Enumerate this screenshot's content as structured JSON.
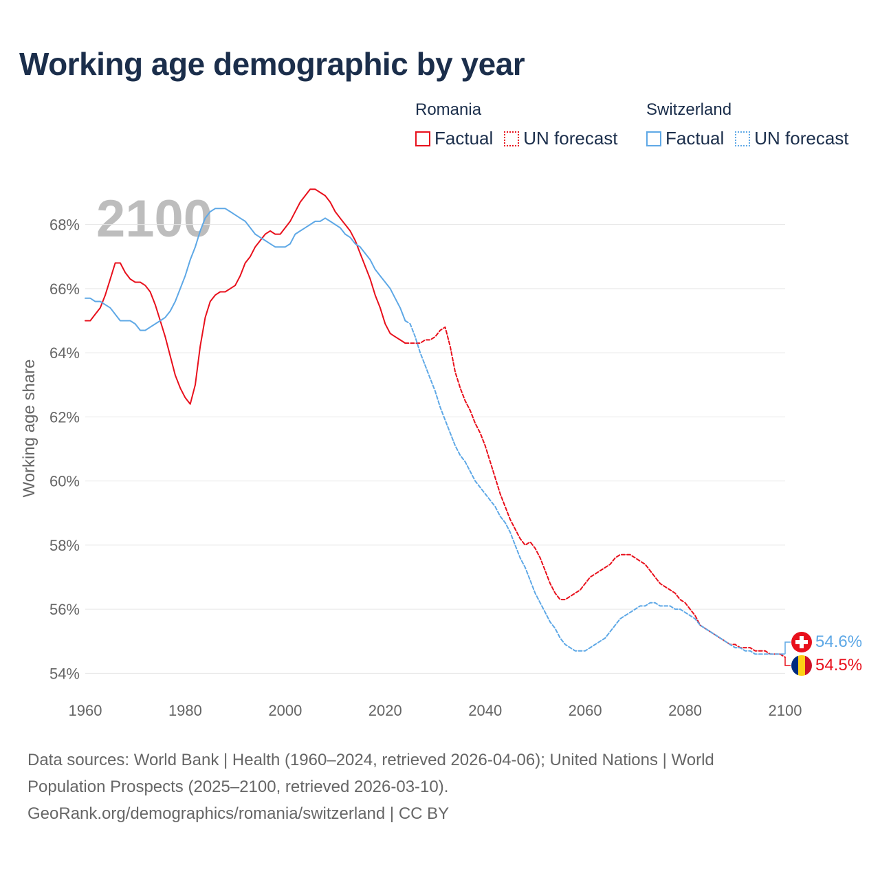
{
  "title": "Working age demographic by year",
  "year_label": "2100",
  "legend": {
    "groups": [
      {
        "country": "Romania",
        "factual_label": "Factual",
        "forecast_label": "UN forecast",
        "color": "#e8101c"
      },
      {
        "country": "Switzerland",
        "factual_label": "Factual",
        "forecast_label": "UN forecast",
        "color": "#5ea8e6"
      }
    ]
  },
  "end_labels": {
    "switzerland": {
      "value_text": "54.6%",
      "color": "#5ea8e6"
    },
    "romania": {
      "value_text": "54.5%",
      "color": "#e8101c"
    }
  },
  "footer": {
    "line1": "Data sources: World Bank | Health (1960–2024, retrieved 2026-04-06); United Nations | World",
    "line2": "Population Prospects (2025–2100, retrieved 2026-03-10).",
    "line3": "GeoRank.org/demographics/romania/switzerland | CC BY"
  },
  "chart_data": {
    "type": "line",
    "title": "Working age demographic by year",
    "xlabel": "",
    "ylabel": "Working age share",
    "xlim": [
      1960,
      2100
    ],
    "ylim": [
      53.6,
      69.6
    ],
    "x_ticks": [
      1960,
      1980,
      2000,
      2020,
      2040,
      2060,
      2080,
      2100
    ],
    "x_tick_labels": [
      "1960",
      "1980",
      "2000",
      "2020",
      "2040",
      "2060",
      "2080",
      "2100"
    ],
    "y_ticks": [
      54,
      56,
      58,
      60,
      62,
      64,
      66,
      68
    ],
    "y_tick_labels": [
      "54%",
      "56%",
      "58%",
      "60%",
      "62%",
      "64%",
      "66%",
      "68%"
    ],
    "grid": true,
    "series": [
      {
        "name": "Romania",
        "kind": "factual",
        "color": "#e8101c",
        "points": [
          [
            1960,
            65.0
          ],
          [
            1961,
            65.0
          ],
          [
            1962,
            65.2
          ],
          [
            1963,
            65.4
          ],
          [
            1964,
            65.8
          ],
          [
            1965,
            66.3
          ],
          [
            1966,
            66.8
          ],
          [
            1967,
            66.8
          ],
          [
            1968,
            66.5
          ],
          [
            1969,
            66.3
          ],
          [
            1970,
            66.2
          ],
          [
            1971,
            66.2
          ],
          [
            1972,
            66.1
          ],
          [
            1973,
            65.9
          ],
          [
            1974,
            65.5
          ],
          [
            1975,
            65.0
          ],
          [
            1976,
            64.5
          ],
          [
            1977,
            63.9
          ],
          [
            1978,
            63.3
          ],
          [
            1979,
            62.9
          ],
          [
            1980,
            62.6
          ],
          [
            1981,
            62.4
          ],
          [
            1982,
            63.0
          ],
          [
            1983,
            64.2
          ],
          [
            1984,
            65.1
          ],
          [
            1985,
            65.6
          ],
          [
            1986,
            65.8
          ],
          [
            1987,
            65.9
          ],
          [
            1988,
            65.9
          ],
          [
            1989,
            66.0
          ],
          [
            1990,
            66.1
          ],
          [
            1991,
            66.4
          ],
          [
            1992,
            66.8
          ],
          [
            1993,
            67.0
          ],
          [
            1994,
            67.3
          ],
          [
            1995,
            67.5
          ],
          [
            1996,
            67.7
          ],
          [
            1997,
            67.8
          ],
          [
            1998,
            67.7
          ],
          [
            1999,
            67.7
          ],
          [
            2000,
            67.9
          ],
          [
            2001,
            68.1
          ],
          [
            2002,
            68.4
          ],
          [
            2003,
            68.7
          ],
          [
            2004,
            68.9
          ],
          [
            2005,
            69.1
          ],
          [
            2006,
            69.1
          ],
          [
            2007,
            69.0
          ],
          [
            2008,
            68.9
          ],
          [
            2009,
            68.7
          ],
          [
            2010,
            68.4
          ],
          [
            2011,
            68.2
          ],
          [
            2012,
            68.0
          ],
          [
            2013,
            67.8
          ],
          [
            2014,
            67.5
          ],
          [
            2015,
            67.1
          ],
          [
            2016,
            66.7
          ],
          [
            2017,
            66.3
          ],
          [
            2018,
            65.8
          ],
          [
            2019,
            65.4
          ],
          [
            2020,
            64.9
          ],
          [
            2021,
            64.6
          ],
          [
            2022,
            64.5
          ],
          [
            2023,
            64.4
          ],
          [
            2024,
            64.3
          ]
        ]
      },
      {
        "name": "Romania",
        "kind": "forecast",
        "color": "#e8101c",
        "points": [
          [
            2024,
            64.3
          ],
          [
            2025,
            64.3
          ],
          [
            2026,
            64.3
          ],
          [
            2027,
            64.3
          ],
          [
            2028,
            64.4
          ],
          [
            2029,
            64.4
          ],
          [
            2030,
            64.5
          ],
          [
            2031,
            64.7
          ],
          [
            2032,
            64.8
          ],
          [
            2033,
            64.2
          ],
          [
            2034,
            63.4
          ],
          [
            2035,
            62.9
          ],
          [
            2036,
            62.5
          ],
          [
            2037,
            62.2
          ],
          [
            2038,
            61.8
          ],
          [
            2039,
            61.5
          ],
          [
            2040,
            61.1
          ],
          [
            2041,
            60.6
          ],
          [
            2042,
            60.1
          ],
          [
            2043,
            59.6
          ],
          [
            2044,
            59.2
          ],
          [
            2045,
            58.8
          ],
          [
            2046,
            58.5
          ],
          [
            2047,
            58.2
          ],
          [
            2048,
            58.0
          ],
          [
            2049,
            58.1
          ],
          [
            2050,
            57.9
          ],
          [
            2051,
            57.6
          ],
          [
            2052,
            57.2
          ],
          [
            2053,
            56.8
          ],
          [
            2054,
            56.5
          ],
          [
            2055,
            56.3
          ],
          [
            2056,
            56.3
          ],
          [
            2057,
            56.4
          ],
          [
            2058,
            56.5
          ],
          [
            2059,
            56.6
          ],
          [
            2060,
            56.8
          ],
          [
            2061,
            57.0
          ],
          [
            2062,
            57.1
          ],
          [
            2063,
            57.2
          ],
          [
            2064,
            57.3
          ],
          [
            2065,
            57.4
          ],
          [
            2066,
            57.6
          ],
          [
            2067,
            57.7
          ],
          [
            2068,
            57.7
          ],
          [
            2069,
            57.7
          ],
          [
            2070,
            57.6
          ],
          [
            2071,
            57.5
          ],
          [
            2072,
            57.4
          ],
          [
            2073,
            57.2
          ],
          [
            2074,
            57.0
          ],
          [
            2075,
            56.8
          ],
          [
            2076,
            56.7
          ],
          [
            2077,
            56.6
          ],
          [
            2078,
            56.5
          ],
          [
            2079,
            56.3
          ],
          [
            2080,
            56.2
          ],
          [
            2081,
            56.0
          ],
          [
            2082,
            55.8
          ],
          [
            2083,
            55.5
          ],
          [
            2084,
            55.4
          ],
          [
            2085,
            55.3
          ],
          [
            2086,
            55.2
          ],
          [
            2087,
            55.1
          ],
          [
            2088,
            55.0
          ],
          [
            2089,
            54.9
          ],
          [
            2090,
            54.9
          ],
          [
            2091,
            54.8
          ],
          [
            2092,
            54.8
          ],
          [
            2093,
            54.8
          ],
          [
            2094,
            54.7
          ],
          [
            2095,
            54.7
          ],
          [
            2096,
            54.7
          ],
          [
            2097,
            54.6
          ],
          [
            2098,
            54.6
          ],
          [
            2099,
            54.6
          ],
          [
            2100,
            54.5
          ]
        ]
      },
      {
        "name": "Switzerland",
        "kind": "factual",
        "color": "#5ea8e6",
        "points": [
          [
            1960,
            65.7
          ],
          [
            1961,
            65.7
          ],
          [
            1962,
            65.6
          ],
          [
            1963,
            65.6
          ],
          [
            1964,
            65.5
          ],
          [
            1965,
            65.4
          ],
          [
            1966,
            65.2
          ],
          [
            1967,
            65.0
          ],
          [
            1968,
            65.0
          ],
          [
            1969,
            65.0
          ],
          [
            1970,
            64.9
          ],
          [
            1971,
            64.7
          ],
          [
            1972,
            64.7
          ],
          [
            1973,
            64.8
          ],
          [
            1974,
            64.9
          ],
          [
            1975,
            65.0
          ],
          [
            1976,
            65.1
          ],
          [
            1977,
            65.3
          ],
          [
            1978,
            65.6
          ],
          [
            1979,
            66.0
          ],
          [
            1980,
            66.4
          ],
          [
            1981,
            66.9
          ],
          [
            1982,
            67.3
          ],
          [
            1983,
            67.8
          ],
          [
            1984,
            68.2
          ],
          [
            1985,
            68.4
          ],
          [
            1986,
            68.5
          ],
          [
            1987,
            68.5
          ],
          [
            1988,
            68.5
          ],
          [
            1989,
            68.4
          ],
          [
            1990,
            68.3
          ],
          [
            1991,
            68.2
          ],
          [
            1992,
            68.1
          ],
          [
            1993,
            67.9
          ],
          [
            1994,
            67.7
          ],
          [
            1995,
            67.6
          ],
          [
            1996,
            67.5
          ],
          [
            1997,
            67.4
          ],
          [
            1998,
            67.3
          ],
          [
            1999,
            67.3
          ],
          [
            2000,
            67.3
          ],
          [
            2001,
            67.4
          ],
          [
            2002,
            67.7
          ],
          [
            2003,
            67.8
          ],
          [
            2004,
            67.9
          ],
          [
            2005,
            68.0
          ],
          [
            2006,
            68.1
          ],
          [
            2007,
            68.1
          ],
          [
            2008,
            68.2
          ],
          [
            2009,
            68.1
          ],
          [
            2010,
            68.0
          ],
          [
            2011,
            67.9
          ],
          [
            2012,
            67.7
          ],
          [
            2013,
            67.6
          ],
          [
            2014,
            67.4
          ],
          [
            2015,
            67.3
          ],
          [
            2016,
            67.1
          ],
          [
            2017,
            66.9
          ],
          [
            2018,
            66.6
          ],
          [
            2019,
            66.4
          ],
          [
            2020,
            66.2
          ],
          [
            2021,
            66.0
          ],
          [
            2022,
            65.7
          ],
          [
            2023,
            65.4
          ],
          [
            2024,
            65.0
          ]
        ]
      },
      {
        "name": "Switzerland",
        "kind": "forecast",
        "color": "#5ea8e6",
        "points": [
          [
            2024,
            65.0
          ],
          [
            2025,
            64.9
          ],
          [
            2026,
            64.5
          ],
          [
            2027,
            64.0
          ],
          [
            2028,
            63.6
          ],
          [
            2029,
            63.2
          ],
          [
            2030,
            62.8
          ],
          [
            2031,
            62.3
          ],
          [
            2032,
            61.9
          ],
          [
            2033,
            61.5
          ],
          [
            2034,
            61.1
          ],
          [
            2035,
            60.8
          ],
          [
            2036,
            60.6
          ],
          [
            2037,
            60.3
          ],
          [
            2038,
            60.0
          ],
          [
            2039,
            59.8
          ],
          [
            2040,
            59.6
          ],
          [
            2041,
            59.4
          ],
          [
            2042,
            59.2
          ],
          [
            2043,
            58.9
          ],
          [
            2044,
            58.7
          ],
          [
            2045,
            58.4
          ],
          [
            2046,
            58.0
          ],
          [
            2047,
            57.6
          ],
          [
            2048,
            57.3
          ],
          [
            2049,
            56.9
          ],
          [
            2050,
            56.5
          ],
          [
            2051,
            56.2
          ],
          [
            2052,
            55.9
          ],
          [
            2053,
            55.6
          ],
          [
            2054,
            55.4
          ],
          [
            2055,
            55.1
          ],
          [
            2056,
            54.9
          ],
          [
            2057,
            54.8
          ],
          [
            2058,
            54.7
          ],
          [
            2059,
            54.7
          ],
          [
            2060,
            54.7
          ],
          [
            2061,
            54.8
          ],
          [
            2062,
            54.9
          ],
          [
            2063,
            55.0
          ],
          [
            2064,
            55.1
          ],
          [
            2065,
            55.3
          ],
          [
            2066,
            55.5
          ],
          [
            2067,
            55.7
          ],
          [
            2068,
            55.8
          ],
          [
            2069,
            55.9
          ],
          [
            2070,
            56.0
          ],
          [
            2071,
            56.1
          ],
          [
            2072,
            56.1
          ],
          [
            2073,
            56.2
          ],
          [
            2074,
            56.2
          ],
          [
            2075,
            56.1
          ],
          [
            2076,
            56.1
          ],
          [
            2077,
            56.1
          ],
          [
            2078,
            56.0
          ],
          [
            2079,
            56.0
          ],
          [
            2080,
            55.9
          ],
          [
            2081,
            55.8
          ],
          [
            2082,
            55.7
          ],
          [
            2083,
            55.5
          ],
          [
            2084,
            55.4
          ],
          [
            2085,
            55.3
          ],
          [
            2086,
            55.2
          ],
          [
            2087,
            55.1
          ],
          [
            2088,
            55.0
          ],
          [
            2089,
            54.9
          ],
          [
            2090,
            54.8
          ],
          [
            2091,
            54.8
          ],
          [
            2092,
            54.7
          ],
          [
            2093,
            54.7
          ],
          [
            2094,
            54.6
          ],
          [
            2095,
            54.6
          ],
          [
            2096,
            54.6
          ],
          [
            2097,
            54.6
          ],
          [
            2098,
            54.6
          ],
          [
            2099,
            54.6
          ],
          [
            2100,
            54.6
          ]
        ]
      }
    ]
  }
}
